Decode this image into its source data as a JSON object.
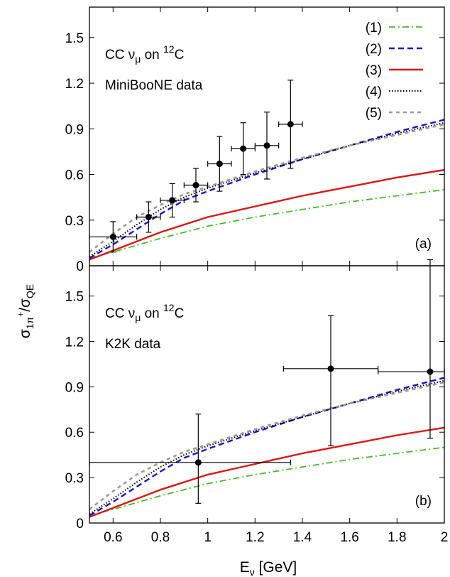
{
  "y_axis_label": {
    "main": "σ",
    "sub1": "1π",
    "sup": "+",
    "slash": "/σ",
    "sub2": "QE"
  },
  "x_axis_label": {
    "main": "E",
    "sub": "ν",
    "unit": " [GeV]"
  },
  "chart_data": [
    {
      "type": "line",
      "panel_tag": "(a)",
      "annotation": {
        "prefix": "CC ν",
        "sub": "μ",
        "on": " on ",
        "sup": "12",
        "target": "C"
      },
      "data_label": "MiniBooNE data",
      "xlim": [
        0.5,
        2.0
      ],
      "ylim": [
        0,
        1.7
      ],
      "x_ticks": [
        0.6,
        0.8,
        1.0,
        1.2,
        1.4,
        1.6,
        1.8,
        2.0
      ],
      "x_tick_labels": [
        "0.6",
        "0.8",
        "1",
        "1.2",
        "1.4",
        "1.6",
        "1.8",
        "2"
      ],
      "y_ticks": [
        0,
        0.3,
        0.6,
        0.9,
        1.2,
        1.5
      ],
      "y_tick_labels": [
        "0",
        "0.3",
        "0.6",
        "0.9",
        "1.2",
        "1.5"
      ],
      "legend_labels": [
        "(1)",
        "(2)",
        "(3)",
        "(4)",
        "(5)"
      ],
      "series": [
        {
          "name": "(1)",
          "color": "#44bb22",
          "style": "dashdot",
          "x": [
            0.5,
            0.6,
            0.8,
            1.0,
            1.2,
            1.4,
            1.6,
            1.8,
            2.0
          ],
          "y": [
            0.05,
            0.09,
            0.18,
            0.26,
            0.32,
            0.37,
            0.42,
            0.46,
            0.5
          ]
        },
        {
          "name": "(2)",
          "color": "#1515c8",
          "style": "dashed",
          "x": [
            0.5,
            0.6,
            0.7,
            0.8,
            0.9,
            1.0,
            1.2,
            1.4,
            1.6,
            1.8,
            2.0
          ],
          "y": [
            0.05,
            0.14,
            0.24,
            0.34,
            0.43,
            0.49,
            0.6,
            0.7,
            0.79,
            0.88,
            0.96
          ]
        },
        {
          "name": "(3)",
          "color": "#e01414",
          "style": "solid",
          "x": [
            0.5,
            0.6,
            0.8,
            1.0,
            1.2,
            1.4,
            1.5,
            1.6,
            1.8,
            2.0
          ],
          "y": [
            0.04,
            0.1,
            0.22,
            0.32,
            0.39,
            0.46,
            0.49,
            0.52,
            0.58,
            0.63
          ]
        },
        {
          "name": "(4)",
          "color": "#000000",
          "style": "dotted",
          "x": [
            0.5,
            0.6,
            0.7,
            0.8,
            0.9,
            1.0,
            1.2,
            1.4,
            1.6,
            1.8,
            2.0
          ],
          "y": [
            0.06,
            0.16,
            0.27,
            0.37,
            0.45,
            0.51,
            0.61,
            0.7,
            0.79,
            0.87,
            0.94
          ]
        },
        {
          "name": "(5)",
          "color": "#999999",
          "style": "dashed-gray",
          "x": [
            0.5,
            0.6,
            0.7,
            0.8,
            0.9,
            1.0,
            1.2,
            1.4,
            1.6,
            1.8,
            2.0
          ],
          "y": [
            0.09,
            0.21,
            0.32,
            0.4,
            0.47,
            0.52,
            0.62,
            0.71,
            0.79,
            0.86,
            0.93
          ]
        }
      ],
      "data_points": {
        "x": [
          0.6,
          0.75,
          0.85,
          0.95,
          1.05,
          1.15,
          1.25,
          1.35
        ],
        "y": [
          0.19,
          0.32,
          0.43,
          0.53,
          0.67,
          0.77,
          0.79,
          0.93
        ],
        "x_err": [
          0.1,
          0.05,
          0.05,
          0.05,
          0.05,
          0.05,
          0.05,
          0.05
        ],
        "y_err": [
          0.1,
          0.1,
          0.11,
          0.11,
          0.18,
          0.17,
          0.22,
          0.29
        ]
      }
    },
    {
      "type": "line",
      "panel_tag": "(b)",
      "annotation": {
        "prefix": "CC ν",
        "sub": "μ",
        "on": " on ",
        "sup": "12",
        "target": "C"
      },
      "data_label": "K2K data",
      "xlim": [
        0.5,
        2.0
      ],
      "ylim": [
        0,
        1.7
      ],
      "x_ticks": [
        0.6,
        0.8,
        1.0,
        1.2,
        1.4,
        1.6,
        1.8,
        2.0
      ],
      "x_tick_labels": [
        "0.6",
        "0.8",
        "1",
        "1.2",
        "1.4",
        "1.6",
        "1.8",
        "2"
      ],
      "y_ticks": [
        0,
        0.3,
        0.6,
        0.9,
        1.2,
        1.5
      ],
      "y_tick_labels": [
        "0",
        "0.3",
        "0.6",
        "0.9",
        "1.2",
        "1.5"
      ],
      "series": [
        {
          "name": "(1)",
          "color": "#44bb22",
          "style": "dashdot",
          "x": [
            0.5,
            0.6,
            0.8,
            1.0,
            1.2,
            1.4,
            1.6,
            1.8,
            2.0
          ],
          "y": [
            0.05,
            0.09,
            0.18,
            0.26,
            0.32,
            0.37,
            0.42,
            0.46,
            0.5
          ]
        },
        {
          "name": "(2)",
          "color": "#1515c8",
          "style": "dashed",
          "x": [
            0.5,
            0.6,
            0.7,
            0.8,
            0.9,
            1.0,
            1.2,
            1.4,
            1.6,
            1.8,
            2.0
          ],
          "y": [
            0.05,
            0.14,
            0.24,
            0.34,
            0.43,
            0.49,
            0.6,
            0.7,
            0.79,
            0.88,
            0.96
          ]
        },
        {
          "name": "(3)",
          "color": "#e01414",
          "style": "solid",
          "x": [
            0.5,
            0.6,
            0.8,
            1.0,
            1.2,
            1.4,
            1.5,
            1.6,
            1.8,
            2.0
          ],
          "y": [
            0.04,
            0.1,
            0.22,
            0.32,
            0.39,
            0.46,
            0.49,
            0.52,
            0.58,
            0.63
          ]
        },
        {
          "name": "(4)",
          "color": "#000000",
          "style": "dotted",
          "x": [
            0.5,
            0.6,
            0.7,
            0.8,
            0.9,
            1.0,
            1.2,
            1.4,
            1.6,
            1.8,
            2.0
          ],
          "y": [
            0.06,
            0.16,
            0.27,
            0.37,
            0.45,
            0.51,
            0.61,
            0.7,
            0.79,
            0.87,
            0.94
          ]
        },
        {
          "name": "(5)",
          "color": "#999999",
          "style": "dashed-gray",
          "x": [
            0.5,
            0.6,
            0.7,
            0.8,
            0.9,
            1.0,
            1.2,
            1.4,
            1.6,
            1.8,
            2.0
          ],
          "y": [
            0.09,
            0.21,
            0.32,
            0.4,
            0.47,
            0.52,
            0.62,
            0.71,
            0.79,
            0.86,
            0.93
          ]
        }
      ],
      "data_points": {
        "x": [
          0.96,
          1.52,
          1.94
        ],
        "y": [
          0.4,
          1.02,
          1.0
        ],
        "x_lo": [
          0.5,
          1.32,
          1.72
        ],
        "x_hi": [
          1.35,
          1.72,
          2.0
        ],
        "y_lo": [
          0.13,
          0.51,
          0.56
        ],
        "y_hi": [
          0.72,
          1.37,
          1.74
        ]
      }
    }
  ]
}
